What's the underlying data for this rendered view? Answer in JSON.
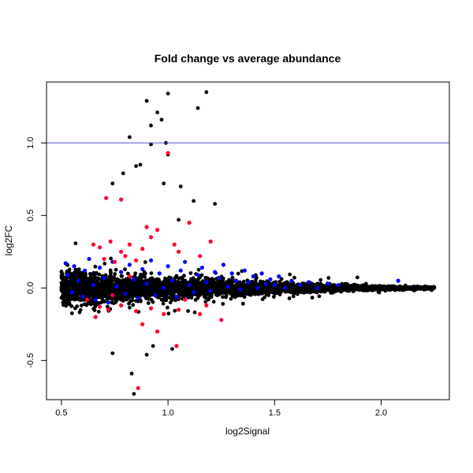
{
  "chart_data": {
    "type": "scatter",
    "title": "Fold change vs average abundance",
    "xlabel": "log2Signal",
    "ylabel": "log2FC",
    "xlim": [
      0.43,
      2.32
    ],
    "ylim": [
      -0.77,
      1.42
    ],
    "xticks": [
      0.5,
      1.0,
      1.5,
      2.0
    ],
    "xtick_labels": [
      "0.5",
      "1.0",
      "1.5",
      "2.0"
    ],
    "yticks": [
      -0.5,
      0.0,
      0.5,
      1.0
    ],
    "ytick_labels": [
      "-0.5",
      "0.0",
      "0.5",
      "1.0"
    ],
    "grid": false,
    "legend": "none",
    "reference_line": {
      "y": 1.0,
      "color": "#5555cc"
    },
    "colors": {
      "base": "#000000",
      "blue": "#0000ff",
      "red": "#ff0033"
    },
    "series": [
      {
        "color": "blue",
        "points": [
          [
            0.52,
            0.17
          ],
          [
            0.53,
            0.09
          ],
          [
            0.55,
            -0.03
          ],
          [
            0.56,
            0.15
          ],
          [
            0.58,
            0.05
          ],
          [
            0.6,
            -0.06
          ],
          [
            0.61,
            0.12
          ],
          [
            0.63,
            0.2
          ],
          [
            0.65,
            0.02
          ],
          [
            0.66,
            -0.08
          ],
          [
            0.68,
            0.14
          ],
          [
            0.7,
            0.07
          ],
          [
            0.72,
            -0.1
          ],
          [
            0.74,
            0.18
          ],
          [
            0.76,
            0.01
          ],
          [
            0.78,
            0.11
          ],
          [
            0.8,
            -0.04
          ],
          [
            0.82,
            0.16
          ],
          [
            0.84,
            0.06
          ],
          [
            0.86,
            -0.07
          ],
          [
            0.88,
            0.13
          ],
          [
            0.9,
            0.03
          ],
          [
            0.92,
            0.19
          ],
          [
            0.94,
            -0.05
          ],
          [
            0.96,
            0.1
          ],
          [
            0.98,
            0.0
          ],
          [
            1.0,
            0.15
          ],
          [
            1.02,
            0.05
          ],
          [
            1.04,
            -0.06
          ],
          [
            1.06,
            0.12
          ],
          [
            1.08,
            0.18
          ],
          [
            1.1,
            0.02
          ],
          [
            1.12,
            -0.03
          ],
          [
            1.14,
            0.09
          ],
          [
            1.16,
            0.14
          ],
          [
            1.18,
            0.04
          ],
          [
            1.2,
            -0.02
          ],
          [
            1.22,
            0.11
          ],
          [
            1.24,
            0.07
          ],
          [
            1.26,
            0.16
          ],
          [
            1.28,
            0.01
          ],
          [
            1.3,
            0.1
          ],
          [
            1.32,
            0.05
          ],
          [
            1.34,
            -0.01
          ],
          [
            1.36,
            0.12
          ],
          [
            1.38,
            0.04
          ],
          [
            1.4,
            0.08
          ],
          [
            1.42,
            0.0
          ],
          [
            1.44,
            0.1
          ],
          [
            1.46,
            0.03
          ],
          [
            1.48,
            0.06
          ],
          [
            1.5,
            0.02
          ],
          [
            1.52,
            0.08
          ],
          [
            1.55,
            0.0
          ],
          [
            1.58,
            0.05
          ],
          [
            1.62,
            0.02
          ],
          [
            1.66,
            0.04
          ],
          [
            1.7,
            0.0
          ],
          [
            1.75,
            0.03
          ],
          [
            1.8,
            0.02
          ],
          [
            2.08,
            0.05
          ]
        ]
      },
      {
        "color": "red",
        "points": [
          [
            0.71,
            0.62
          ],
          [
            0.78,
            0.61
          ],
          [
            0.9,
            0.42
          ],
          [
            0.95,
            0.4
          ],
          [
            1.0,
            0.93
          ],
          [
            0.65,
            0.3
          ],
          [
            0.68,
            0.28
          ],
          [
            0.73,
            0.32
          ],
          [
            0.78,
            0.25
          ],
          [
            0.82,
            0.3
          ],
          [
            0.88,
            0.27
          ],
          [
            0.92,
            0.35
          ],
          [
            1.03,
            0.3
          ],
          [
            1.1,
            0.45
          ],
          [
            1.2,
            0.32
          ],
          [
            0.7,
            0.2
          ],
          [
            0.75,
            0.18
          ],
          [
            0.8,
            0.22
          ],
          [
            0.85,
            0.19
          ],
          [
            1.05,
            0.25
          ],
          [
            1.15,
            0.22
          ],
          [
            0.68,
            -0.13
          ],
          [
            0.72,
            -0.15
          ],
          [
            0.78,
            -0.12
          ],
          [
            0.85,
            -0.16
          ],
          [
            0.92,
            -0.14
          ],
          [
            0.98,
            -0.18
          ],
          [
            1.05,
            -0.15
          ],
          [
            1.15,
            -0.18
          ],
          [
            1.25,
            -0.22
          ],
          [
            0.88,
            -0.25
          ],
          [
            0.95,
            -0.3
          ],
          [
            1.04,
            -0.4
          ],
          [
            0.86,
            -0.69
          ],
          [
            0.62,
            -0.08
          ],
          [
            0.66,
            -0.2
          ],
          [
            0.74,
            -0.05
          ],
          [
            0.82,
            0.08
          ],
          [
            1.08,
            -0.08
          ],
          [
            1.18,
            -0.12
          ]
        ]
      }
    ]
  }
}
